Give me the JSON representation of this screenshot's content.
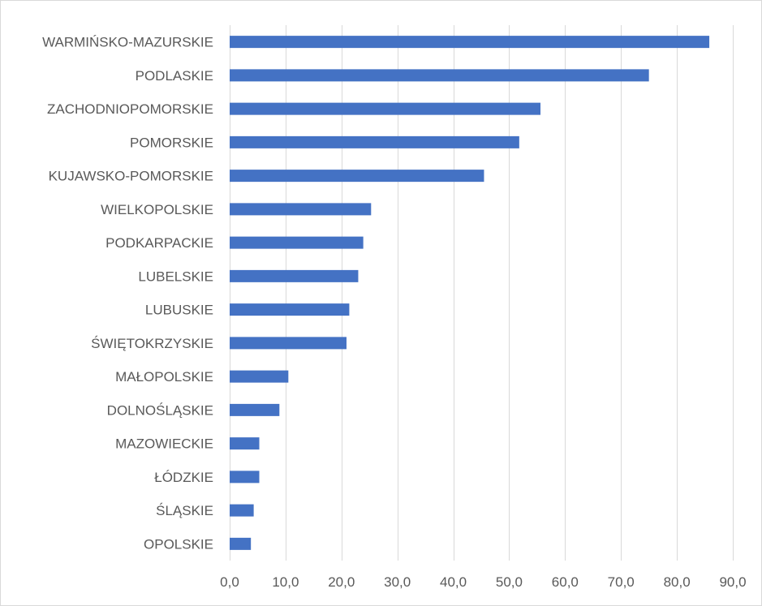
{
  "chart_data": {
    "type": "bar",
    "orientation": "horizontal",
    "title": "",
    "xlabel": "",
    "ylabel": "",
    "categories": [
      "WARMIŃSKO-MAZURSKIE",
      "PODLASKIE",
      "ZACHODNIOPOMORSKIE",
      "POMORSKIE",
      "KUJAWSKO-POMORSKIE",
      "WIELKOPOLSKIE",
      "PODKARPACKIE",
      "LUBELSKIE",
      "LUBUSKIE",
      "ŚWIĘTOKRZYSKIE",
      "MAŁOPOLSKIE",
      "DOLNOŚLĄSKIE",
      "MAZOWIECKIE",
      "ŁÓDZKIE",
      "ŚLĄSKIE",
      "OPOLSKIE"
    ],
    "values": [
      85.8,
      75.0,
      55.6,
      51.8,
      45.5,
      25.3,
      23.9,
      23.0,
      21.4,
      20.9,
      10.5,
      8.9,
      5.3,
      5.3,
      4.3,
      3.8
    ],
    "xlim": [
      0,
      90
    ],
    "x_ticks": [
      0,
      10,
      20,
      30,
      40,
      50,
      60,
      70,
      80,
      90
    ],
    "x_tick_labels": [
      "0,0",
      "10,0",
      "20,0",
      "30,0",
      "40,0",
      "50,0",
      "60,0",
      "70,0",
      "80,0",
      "90,0"
    ],
    "bar_color": "#4472c4",
    "grid": true,
    "legend": "none"
  }
}
